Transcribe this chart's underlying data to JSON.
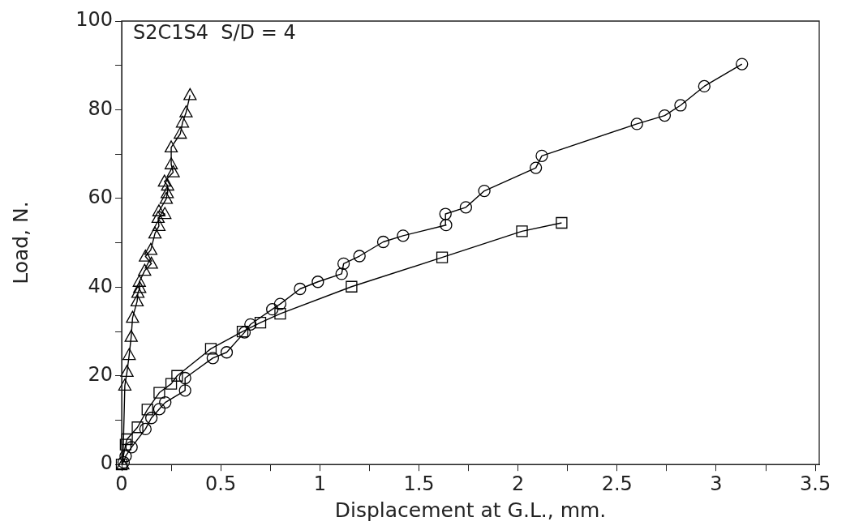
{
  "chart_data": {
    "type": "line",
    "xlabel": "Displacement at G.L., mm.",
    "ylabel": "Load, N.",
    "annotations": [
      "S2C1S4  S/D = 4"
    ],
    "xlim": [
      0,
      3.52
    ],
    "xticks": [
      0,
      {
        "value": 0.25,
        "label": null
      },
      0.5,
      {
        "value": 0.75,
        "label": null
      },
      1,
      {
        "value": 1.25,
        "label": null
      },
      1.5,
      {
        "value": 1.75,
        "label": null
      },
      2,
      {
        "value": 2.25,
        "label": null
      },
      2.5,
      {
        "value": 2.75,
        "label": null
      },
      3,
      {
        "value": 3.25,
        "label": null
      },
      3.5
    ],
    "ylim": [
      0,
      100
    ],
    "yticks": [
      0,
      {
        "value": 10,
        "label": null
      },
      20,
      {
        "value": 30,
        "label": null
      },
      40,
      {
        "value": 50,
        "label": null
      },
      60,
      {
        "value": 70,
        "label": null
      },
      80,
      {
        "value": 90,
        "label": null
      },
      100
    ],
    "grid": false,
    "legend": false,
    "line_style": "solid",
    "series": [
      {
        "color": "#000000",
        "marker": "triangle",
        "x": [
          0.006,
          0.016,
          0.027,
          0.038,
          0.048,
          0.055,
          0.078,
          0.082,
          0.091,
          0.089,
          0.116,
          0.15,
          0.12,
          0.147,
          0.168,
          0.188,
          0.184,
          0.218,
          0.188,
          0.225,
          0.23,
          0.232,
          0.216,
          0.26,
          0.25,
          0.25,
          0.296,
          0.307,
          0.325,
          0.345
        ],
        "values": [
          0,
          17.8,
          20.9,
          24.7,
          28.8,
          33.1,
          36.8,
          38.7,
          39.8,
          41.2,
          43.7,
          45.3,
          46.9,
          48.4,
          52.1,
          53.8,
          55.6,
          56.5,
          57.1,
          59.9,
          61.2,
          62.9,
          63.8,
          65.9,
          67.7,
          71.5,
          74.6,
          77.1,
          79.4,
          83.3
        ]
      },
      {
        "color": "#000000",
        "marker": "circle",
        "x": [
          0.01,
          0.02,
          0.05,
          0.12,
          0.15,
          0.19,
          0.22,
          0.32,
          0.32,
          0.46,
          0.53,
          0.62,
          0.65,
          0.76,
          0.8,
          0.9,
          0.99,
          1.11,
          1.12,
          1.2,
          1.32,
          1.42,
          1.637,
          1.634,
          1.737,
          1.83,
          2.09,
          2.12,
          2.6,
          2.74,
          2.82,
          2.94,
          3.13
        ],
        "values": [
          0.5,
          1.9,
          3.9,
          8,
          10.5,
          12.5,
          14,
          16.7,
          19.5,
          24,
          25.3,
          29.8,
          31.6,
          35,
          36.2,
          39.6,
          41.2,
          43,
          45.3,
          47,
          50.2,
          51.6,
          54,
          56.5,
          58,
          61.7,
          66.9,
          69.6,
          76.8,
          78.7,
          81,
          85.3,
          90.3
        ]
      },
      {
        "color": "#000000",
        "marker": "square",
        "x": [
          0,
          0.02,
          0.027,
          0.08,
          0.13,
          0.19,
          0.25,
          0.28,
          0.45,
          0.61,
          0.7,
          0.8,
          1.16,
          1.617,
          2.02,
          2.22
        ],
        "values": [
          0,
          4.5,
          5.7,
          8.4,
          12.4,
          16.2,
          18.2,
          20,
          26.1,
          30,
          32,
          34,
          40.1,
          46.7,
          52.6,
          54.5
        ]
      }
    ]
  }
}
